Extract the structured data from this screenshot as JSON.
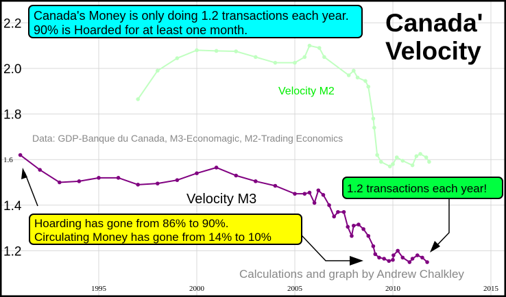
{
  "chart_data": {
    "type": "line",
    "title": "Canada' Velocity",
    "title_lines": [
      "Canada'",
      "Velocity"
    ],
    "xlim": [
      1990,
      2015.8
    ],
    "ylim": [
      1.07,
      2.3
    ],
    "grid": true,
    "x_ticks": [
      1995,
      2000,
      2005,
      2010,
      2015
    ],
    "x_tick_labels": [
      "1995",
      "2000",
      "2005",
      "2010",
      "2015"
    ],
    "y_ticks": [
      2.2,
      2.0,
      1.8,
      1.6,
      1.4,
      1.2
    ],
    "y_tick_labels": [
      "2.2",
      "2.0",
      "1.8",
      "1.6",
      "1.4",
      "1.2"
    ],
    "series": [
      {
        "name": "Velocity M2",
        "color": "#c0ffc0",
        "x": [
          1997,
          1998,
          1999,
          2000,
          2001,
          2002,
          2003,
          2004,
          2005,
          2005.5,
          2005.75,
          2006.25,
          2006.5,
          2007.75,
          2008,
          2008.2,
          2008.6,
          2008.75,
          2009,
          2009.05,
          2009.2,
          2009.4,
          2009.85,
          2010,
          2010.2,
          2010.5,
          2011,
          2011.2,
          2011.4,
          2011.7,
          2011.85
        ],
        "y": [
          1.865,
          1.99,
          2.045,
          2.08,
          2.077,
          2.075,
          2.05,
          2.025,
          2.025,
          2.05,
          2.1,
          2.09,
          2.05,
          1.97,
          1.99,
          1.96,
          1.945,
          1.92,
          1.78,
          1.74,
          1.62,
          1.59,
          1.57,
          1.58,
          1.61,
          1.595,
          1.575,
          1.615,
          1.625,
          1.61,
          1.59
        ]
      },
      {
        "name": "Velocity M3",
        "color": "#800080",
        "x": [
          1991,
          1992,
          1993,
          1994,
          1995,
          1996,
          1997,
          1998,
          1999,
          2000,
          2001,
          2002,
          2003,
          2004,
          2005,
          2005.5,
          2005.75,
          2006,
          2006.2,
          2006.45,
          2006.75,
          2007,
          2007.2,
          2007.5,
          2007.7,
          2007.9,
          2008,
          2008.25,
          2008.5,
          2008.75,
          2009,
          2009.1,
          2009.3,
          2009.55,
          2009.8,
          2010,
          2010.03,
          2010.25,
          2010.5,
          2010.85,
          2011,
          2011.25,
          2011.5,
          2011.75
        ],
        "y": [
          1.62,
          1.555,
          1.5,
          1.505,
          1.52,
          1.52,
          1.49,
          1.495,
          1.51,
          1.54,
          1.565,
          1.53,
          1.505,
          1.485,
          1.45,
          1.45,
          1.455,
          1.41,
          1.465,
          1.445,
          1.4,
          1.35,
          1.37,
          1.37,
          1.305,
          1.265,
          1.31,
          1.315,
          1.295,
          1.265,
          1.22,
          1.185,
          1.17,
          1.165,
          1.155,
          1.16,
          1.18,
          1.2,
          1.17,
          1.15,
          1.165,
          1.18,
          1.17,
          1.15
        ]
      }
    ],
    "annotations": {
      "top_box": [
        "Canada's Money is only doing 1.2 transactions each year.",
        "90% is Hoarded for at least one month."
      ],
      "top_box_color": "#00ffff",
      "hoarding_box": [
        "Hoarding has gone from 86% to 90%.",
        "Circulating Money has gone from 14% to 10%"
      ],
      "hoarding_box_color": "#ffff00",
      "transactions_box": "1.2 transactions each year!",
      "transactions_box_color": "#00ff40",
      "m2_label": "Velocity M2",
      "m3_label": "Velocity M3",
      "data_source": "Data: GDP-Banque du Canada, M3-Economagic, M2-Trading Economics",
      "credit": "Calculations and graph by Andrew Chalkley"
    }
  }
}
